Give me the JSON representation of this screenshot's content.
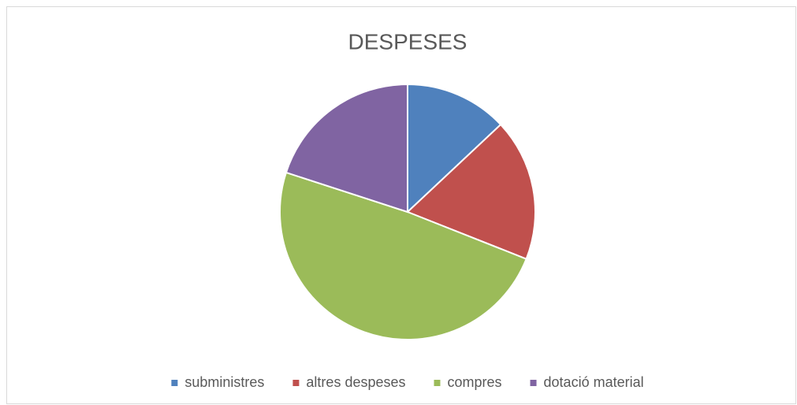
{
  "chart_data": {
    "type": "pie",
    "title": "DESPESES",
    "categories": [
      "subministres",
      "altres despeses",
      "compres",
      "dotació material"
    ],
    "values": [
      13,
      18,
      49,
      20
    ],
    "colors": [
      "#4f81bd",
      "#c0504d",
      "#9bbb59",
      "#8064a2"
    ],
    "legend": "bottom"
  }
}
